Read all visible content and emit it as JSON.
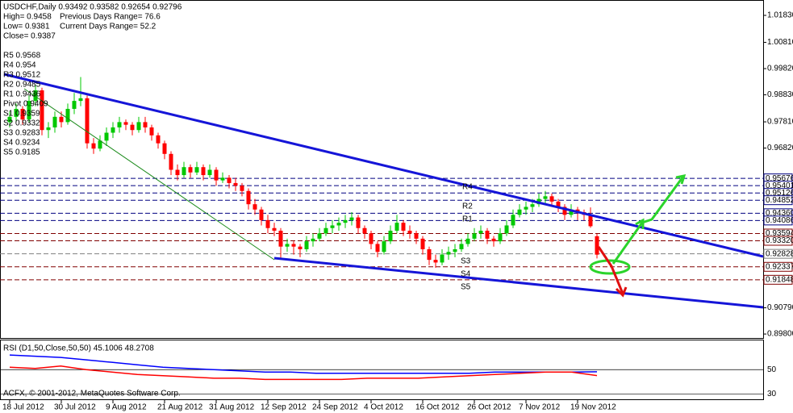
{
  "chart_data": [
    {
      "type": "candlestick",
      "title": "USDCHF,Daily  0.93492 0.93582 0.92654 0.92796",
      "info": [
        "High= 0.9458",
        "Previous Days Range= 76.6",
        "Low= 0.9381",
        "Current Days Range= 52.2",
        "Close= 0.9387"
      ],
      "pivots": [
        "R5 0.9568",
        "R4 0.954",
        "R3 0.9512",
        "R2 0.9485",
        "R1 0.9436",
        "Pivot 0.9409",
        "S1 0.9359",
        "S2 0.9332",
        "S3 0.9283",
        "S4 0.9234",
        "S5 0.9185"
      ],
      "annotations": [
        "R4",
        "R2",
        "R1",
        "S3",
        "S4",
        "S5"
      ],
      "up_color": "#00c800",
      "down_color": "#ff0000",
      "ylim": [
        0.8962,
        1.0241
      ],
      "yticks": [
        {
          "value": 1.0183,
          "label": "1.01830"
        },
        {
          "value": 1.0081,
          "label": "1.00810"
        },
        {
          "value": 0.9982,
          "label": "0.99820"
        },
        {
          "value": 0.9883,
          "label": "0.98830"
        },
        {
          "value": 0.9781,
          "label": "0.97810"
        },
        {
          "value": 0.9682,
          "label": "0.96820"
        },
        {
          "value": 0.9079,
          "label": "0.90790"
        },
        {
          "value": 0.898,
          "label": "0.89800"
        }
      ],
      "levels": [
        {
          "value": 0.95676,
          "label": "0.95676",
          "color": "#000080"
        },
        {
          "value": 0.95401,
          "label": "0.95401",
          "color": "#000080"
        },
        {
          "value": 0.95126,
          "label": "0.95126",
          "color": "#000080"
        },
        {
          "value": 0.94852,
          "label": "0.94852",
          "color": "#000080"
        },
        {
          "value": 0.9436,
          "label": "0.94360",
          "color": "#000080"
        },
        {
          "value": 0.94086,
          "label": "0.94086",
          "color": "#000080"
        },
        {
          "value": 0.93594,
          "label": "0.93594",
          "color": "#800000"
        },
        {
          "value": 0.9332,
          "label": "0.93320",
          "color": "#800000"
        },
        {
          "value": 0.92828,
          "label": "0.92828",
          "color": "#808080"
        },
        {
          "value": 0.92337,
          "label": "0.92337",
          "color": "#800000"
        },
        {
          "value": 0.91848,
          "label": "0.91848",
          "color": "#800000"
        }
      ],
      "categories": [
        "18 Jul 2012",
        null,
        null,
        null,
        null,
        null,
        null,
        null,
        "30 Jul 2012",
        null,
        null,
        null,
        null,
        null,
        null,
        null,
        "9 Aug 2012",
        null,
        null,
        null,
        null,
        null,
        null,
        null,
        "21 Aug 2012",
        null,
        null,
        null,
        null,
        null,
        null,
        null,
        "31 Aug 2012",
        null,
        null,
        null,
        null,
        null,
        null,
        null,
        "12 Sep 2012",
        null,
        null,
        null,
        null,
        null,
        null,
        null,
        "24 Sep 2012",
        null,
        null,
        null,
        null,
        null,
        null,
        null,
        "4 Oct 2012",
        null,
        null,
        null,
        null,
        null,
        null,
        null,
        "16 Oct 2012",
        null,
        null,
        null,
        null,
        null,
        null,
        null,
        "26 Oct 2012",
        null,
        null,
        null,
        null,
        null,
        null,
        null,
        "7 Nov 2012",
        null,
        null,
        null,
        null,
        null,
        null,
        null,
        "19 Nov 2012",
        null,
        null,
        null
      ],
      "ohlc": [
        [
          0.978,
          0.982,
          0.976,
          0.98
        ],
        [
          0.98,
          0.985,
          0.978,
          0.983
        ],
        [
          0.983,
          0.984,
          0.977,
          0.979
        ],
        [
          0.979,
          0.988,
          0.978,
          0.986
        ],
        [
          0.986,
          0.992,
          0.984,
          0.99
        ],
        [
          0.99,
          0.991,
          0.973,
          0.975
        ],
        [
          0.975,
          0.978,
          0.972,
          0.976
        ],
        [
          0.976,
          0.982,
          0.974,
          0.98
        ],
        [
          0.98,
          0.982,
          0.976,
          0.978
        ],
        [
          0.978,
          0.985,
          0.977,
          0.983
        ],
        [
          0.983,
          0.989,
          0.981,
          0.986
        ],
        [
          0.986,
          0.995,
          0.984,
          0.987
        ],
        [
          0.987,
          0.988,
          0.968,
          0.97
        ],
        [
          0.97,
          0.972,
          0.966,
          0.968
        ],
        [
          0.968,
          0.973,
          0.967,
          0.971
        ],
        [
          0.971,
          0.976,
          0.969,
          0.974
        ],
        [
          0.974,
          0.978,
          0.972,
          0.976
        ],
        [
          0.976,
          0.98,
          0.974,
          0.978
        ],
        [
          0.978,
          0.979,
          0.975,
          0.977
        ],
        [
          0.977,
          0.978,
          0.973,
          0.975
        ],
        [
          0.975,
          0.98,
          0.974,
          0.978
        ],
        [
          0.978,
          0.98,
          0.974,
          0.976
        ],
        [
          0.976,
          0.977,
          0.971,
          0.973
        ],
        [
          0.973,
          0.974,
          0.968,
          0.97
        ],
        [
          0.97,
          0.971,
          0.964,
          0.966
        ],
        [
          0.966,
          0.967,
          0.958,
          0.96
        ],
        [
          0.96,
          0.962,
          0.956,
          0.958
        ],
        [
          0.958,
          0.963,
          0.957,
          0.961
        ],
        [
          0.961,
          0.962,
          0.957,
          0.959
        ],
        [
          0.959,
          0.963,
          0.958,
          0.961
        ],
        [
          0.961,
          0.962,
          0.956,
          0.958
        ],
        [
          0.958,
          0.962,
          0.957,
          0.96
        ],
        [
          0.96,
          0.961,
          0.954,
          0.956
        ],
        [
          0.956,
          0.959,
          0.955,
          0.957
        ],
        [
          0.957,
          0.958,
          0.953,
          0.955
        ],
        [
          0.955,
          0.957,
          0.952,
          0.954
        ],
        [
          0.954,
          0.955,
          0.95,
          0.952
        ],
        [
          0.952,
          0.953,
          0.945,
          0.947
        ],
        [
          0.947,
          0.949,
          0.943,
          0.945
        ],
        [
          0.945,
          0.946,
          0.939,
          0.941
        ],
        [
          0.941,
          0.943,
          0.936,
          0.938
        ],
        [
          0.938,
          0.94,
          0.935,
          0.937
        ],
        [
          0.937,
          0.938,
          0.926,
          0.931
        ],
        [
          0.931,
          0.934,
          0.929,
          0.932
        ],
        [
          0.932,
          0.933,
          0.928,
          0.931
        ],
        [
          0.931,
          0.932,
          0.927,
          0.93
        ],
        [
          0.93,
          0.935,
          0.929,
          0.933
        ],
        [
          0.933,
          0.936,
          0.931,
          0.934
        ],
        [
          0.934,
          0.938,
          0.933,
          0.936
        ],
        [
          0.936,
          0.94,
          0.935,
          0.938
        ],
        [
          0.938,
          0.941,
          0.936,
          0.939
        ],
        [
          0.939,
          0.942,
          0.937,
          0.94
        ],
        [
          0.94,
          0.943,
          0.938,
          0.941
        ],
        [
          0.941,
          0.944,
          0.939,
          0.942
        ],
        [
          0.942,
          0.943,
          0.936,
          0.938
        ],
        [
          0.938,
          0.939,
          0.934,
          0.936
        ],
        [
          0.936,
          0.937,
          0.93,
          0.932
        ],
        [
          0.932,
          0.933,
          0.927,
          0.929
        ],
        [
          0.929,
          0.935,
          0.928,
          0.933
        ],
        [
          0.933,
          0.939,
          0.932,
          0.937
        ],
        [
          0.937,
          0.943,
          0.936,
          0.94
        ],
        [
          0.94,
          0.941,
          0.935,
          0.937
        ],
        [
          0.937,
          0.939,
          0.934,
          0.936
        ],
        [
          0.936,
          0.937,
          0.932,
          0.934
        ],
        [
          0.934,
          0.935,
          0.928,
          0.93
        ],
        [
          0.93,
          0.931,
          0.924,
          0.926
        ],
        [
          0.926,
          0.928,
          0.923,
          0.925
        ],
        [
          0.925,
          0.93,
          0.924,
          0.928
        ],
        [
          0.928,
          0.931,
          0.926,
          0.929
        ],
        [
          0.929,
          0.932,
          0.927,
          0.93
        ],
        [
          0.93,
          0.934,
          0.929,
          0.932
        ],
        [
          0.932,
          0.936,
          0.931,
          0.934
        ],
        [
          0.934,
          0.938,
          0.933,
          0.936
        ],
        [
          0.936,
          0.939,
          0.934,
          0.937
        ],
        [
          0.937,
          0.938,
          0.932,
          0.934
        ],
        [
          0.934,
          0.935,
          0.931,
          0.933
        ],
        [
          0.933,
          0.938,
          0.932,
          0.936
        ],
        [
          0.936,
          0.941,
          0.935,
          0.939
        ],
        [
          0.939,
          0.945,
          0.938,
          0.943
        ],
        [
          0.943,
          0.947,
          0.942,
          0.945
        ],
        [
          0.945,
          0.948,
          0.943,
          0.946
        ],
        [
          0.946,
          0.949,
          0.944,
          0.947
        ],
        [
          0.947,
          0.951,
          0.946,
          0.949
        ],
        [
          0.949,
          0.952,
          0.947,
          0.95
        ],
        [
          0.95,
          0.951,
          0.946,
          0.948
        ],
        [
          0.948,
          0.949,
          0.944,
          0.946
        ],
        [
          0.946,
          0.947,
          0.941,
          0.943
        ],
        [
          0.943,
          0.947,
          0.942,
          0.945
        ],
        [
          0.945,
          0.946,
          0.941,
          0.944
        ],
        [
          0.944,
          0.945,
          0.9409,
          0.943
        ],
        [
          0.943,
          0.9458,
          0.9381,
          0.9387
        ],
        [
          0.93492,
          0.93582,
          0.92654,
          0.92796
        ]
      ]
    },
    {
      "type": "line",
      "title": "RSI (D1,50,Close,50,50) 45.1006 48.2708",
      "footer": "ACFX, © 2001-2012, MetaQuotes Software Corp.",
      "ylim": [
        25,
        74
      ],
      "yticks": [
        50,
        30
      ],
      "series": [
        {
          "color": "#0000ff",
          "values": [
            62,
            61,
            60,
            58,
            56,
            54,
            52,
            51,
            50,
            49,
            48,
            48,
            47,
            47,
            47,
            47,
            47,
            47,
            47,
            48,
            48,
            48,
            48,
            48.2708
          ]
        },
        {
          "color": "#ff0000",
          "values": [
            52,
            51,
            53,
            50,
            48,
            46,
            45,
            44,
            43,
            43,
            42,
            42,
            42,
            42,
            43,
            43,
            43,
            44,
            45,
            46,
            47,
            48,
            48,
            45.1006
          ]
        }
      ]
    }
  ]
}
